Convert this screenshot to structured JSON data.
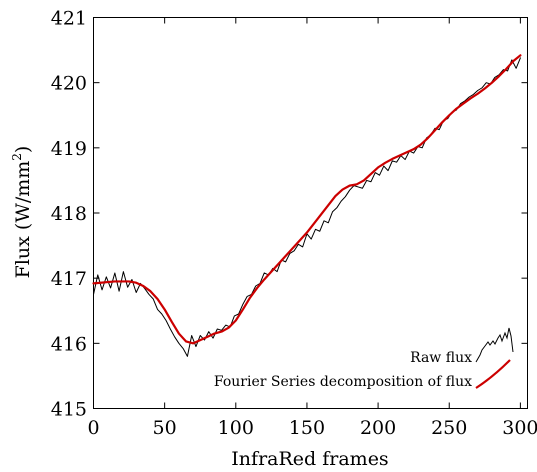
{
  "chart_data": {
    "type": "line",
    "title": "",
    "xlabel": "InfraRed frames",
    "ylabel": "Flux (W/mm",
    "ylabel_superscript": "2",
    "ylabel_suffix": ")",
    "xlim": [
      0,
      305
    ],
    "ylim": [
      415,
      421
    ],
    "xticks": [
      0,
      50,
      100,
      150,
      200,
      250,
      300
    ],
    "yticks": [
      415,
      416,
      417,
      418,
      419,
      420,
      421
    ],
    "grid": false,
    "legend_position": "bottom-right",
    "legend": [
      {
        "name": "Raw flux",
        "color": "#000000"
      },
      {
        "name": "Fourier Series decomposition of flux",
        "color": "#cc0000"
      }
    ],
    "series": [
      {
        "name": "Raw flux",
        "color": "#000000",
        "x": [
          0,
          3,
          6,
          9,
          12,
          15,
          18,
          21,
          24,
          27,
          30,
          33,
          36,
          39,
          42,
          45,
          48,
          51,
          54,
          57,
          60,
          63,
          66,
          69,
          72,
          75,
          78,
          81,
          84,
          87,
          90,
          93,
          96,
          99,
          102,
          105,
          108,
          111,
          114,
          117,
          120,
          123,
          126,
          129,
          132,
          135,
          138,
          141,
          144,
          147,
          150,
          153,
          156,
          159,
          162,
          165,
          168,
          171,
          174,
          177,
          180,
          183,
          186,
          189,
          192,
          195,
          198,
          201,
          204,
          207,
          210,
          213,
          216,
          219,
          222,
          225,
          228,
          231,
          234,
          237,
          240,
          243,
          246,
          249,
          252,
          255,
          258,
          261,
          264,
          267,
          270,
          273,
          276,
          279,
          282,
          285,
          288,
          291,
          294,
          297,
          300
        ],
        "y": [
          416.75,
          417.05,
          416.82,
          417.02,
          416.85,
          417.08,
          416.8,
          417.1,
          416.86,
          416.98,
          416.78,
          416.92,
          416.84,
          416.75,
          416.68,
          416.52,
          416.45,
          416.35,
          416.22,
          416.1,
          416.0,
          415.92,
          415.8,
          416.12,
          415.95,
          416.12,
          416.05,
          416.18,
          416.08,
          416.22,
          416.2,
          416.28,
          416.25,
          416.42,
          416.45,
          416.6,
          416.72,
          416.75,
          416.88,
          416.92,
          417.08,
          417.05,
          417.15,
          417.1,
          417.28,
          417.25,
          417.38,
          417.42,
          417.52,
          417.48,
          417.68,
          417.6,
          417.75,
          417.72,
          417.88,
          417.85,
          418.02,
          418.08,
          418.18,
          418.25,
          418.35,
          418.42,
          418.4,
          418.38,
          418.5,
          418.48,
          418.62,
          418.58,
          418.72,
          418.65,
          418.8,
          418.78,
          418.88,
          418.82,
          418.95,
          418.92,
          419.02,
          419.0,
          419.15,
          419.2,
          419.3,
          419.28,
          419.42,
          419.45,
          419.55,
          419.58,
          419.68,
          419.72,
          419.78,
          419.82,
          419.88,
          419.92,
          420.0,
          419.98,
          420.08,
          420.12,
          420.2,
          420.18,
          420.35,
          420.22,
          420.38
        ]
      },
      {
        "name": "Fourier Series decomposition of flux",
        "color": "#cc0000",
        "x": [
          0,
          5,
          10,
          15,
          20,
          25,
          30,
          35,
          40,
          45,
          50,
          55,
          60,
          65,
          70,
          75,
          80,
          85,
          90,
          95,
          100,
          105,
          110,
          115,
          120,
          125,
          130,
          135,
          140,
          145,
          150,
          155,
          160,
          165,
          170,
          175,
          180,
          185,
          190,
          195,
          200,
          205,
          210,
          215,
          220,
          225,
          230,
          235,
          240,
          245,
          250,
          255,
          260,
          265,
          270,
          275,
          280,
          285,
          290,
          295,
          300
        ],
        "y": [
          416.92,
          416.93,
          416.94,
          416.95,
          416.95,
          416.95,
          416.93,
          416.88,
          416.8,
          416.68,
          416.52,
          416.33,
          416.15,
          416.03,
          416.0,
          416.05,
          416.1,
          416.15,
          416.18,
          416.24,
          416.35,
          416.52,
          416.7,
          416.85,
          416.98,
          417.1,
          417.22,
          417.34,
          417.46,
          417.58,
          417.7,
          417.84,
          417.98,
          418.12,
          418.26,
          418.36,
          418.42,
          418.44,
          418.5,
          418.6,
          418.7,
          418.77,
          418.83,
          418.88,
          418.93,
          418.98,
          419.05,
          419.15,
          419.27,
          419.39,
          419.5,
          419.6,
          419.68,
          419.76,
          419.83,
          419.91,
          420.0,
          420.1,
          420.21,
          420.33,
          420.42
        ]
      }
    ]
  }
}
